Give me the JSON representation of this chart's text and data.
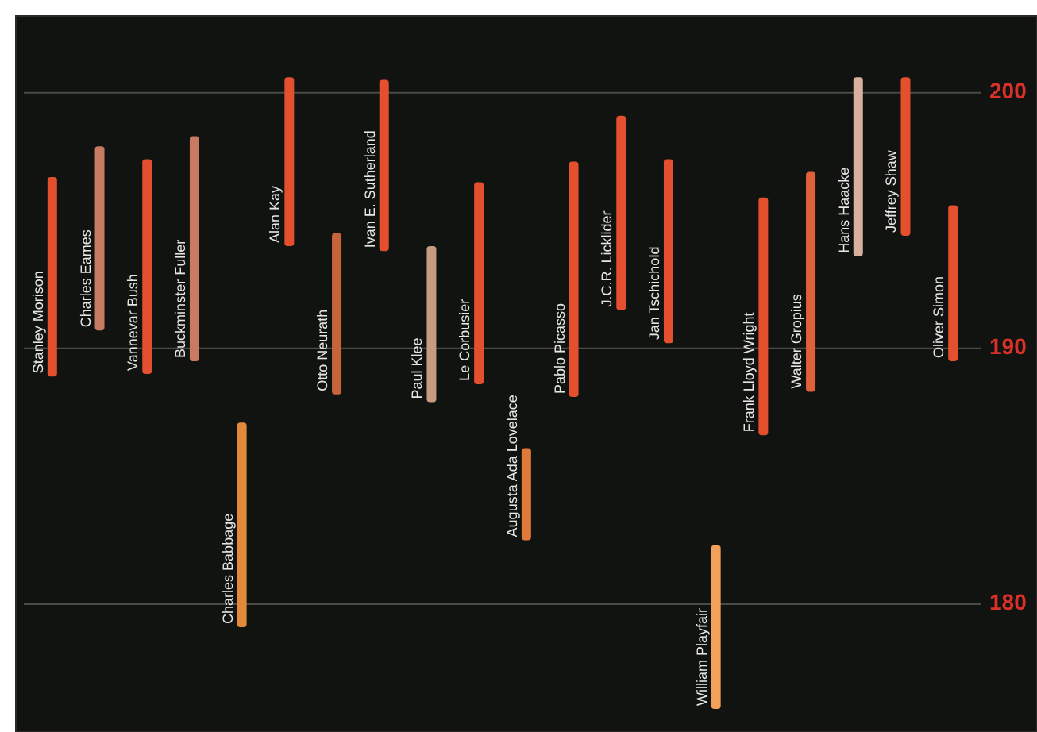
{
  "chart_data": {
    "type": "bar",
    "categories": [
      "Stanley Morison",
      "Charles Eames",
      "Vannevar Bush",
      "Buckminster Fuller",
      "Charles Babbage",
      "Alan Kay",
      "Otto Neurath",
      "Ivan E. Sutherland",
      "Paul Klee",
      "Le Corbusier",
      "Augusta Ada Lovelace",
      "Pablo Picasso",
      "J.C.R. Licklider",
      "Jan Tschichold",
      "William Playfair",
      "Frank Lloyd Wright",
      "Walter Gropius",
      "Hans Haacke",
      "Jeffrey Shaw",
      "Oliver Simon"
    ],
    "base": [
      188.9,
      190.7,
      189.0,
      189.5,
      179.1,
      194.0,
      188.2,
      193.8,
      187.9,
      188.6,
      182.5,
      188.1,
      191.5,
      190.2,
      175.9,
      186.6,
      188.3,
      193.6,
      194.4,
      189.5
    ],
    "values": [
      7.8,
      7.2,
      8.4,
      8.8,
      8.0,
      6.6,
      6.3,
      6.7,
      6.1,
      7.9,
      3.6,
      9.2,
      7.6,
      7.2,
      6.4,
      9.3,
      8.6,
      7.0,
      6.2,
      6.1
    ],
    "colors": [
      "#e4502e",
      "#c97a63",
      "#e4502e",
      "#c97a63",
      "#e08a3a",
      "#e4502e",
      "#c8643a",
      "#e4502e",
      "#c89a80",
      "#e4502e",
      "#e07a3a",
      "#e4502e",
      "#e4502e",
      "#e4502e",
      "#f2a05a",
      "#e4502e",
      "#e0603a",
      "#d8b0a0",
      "#e4502e",
      "#e4502e"
    ],
    "ylim": [
      175,
      203
    ],
    "yticks": [
      180,
      190,
      200
    ],
    "grid": true
  }
}
